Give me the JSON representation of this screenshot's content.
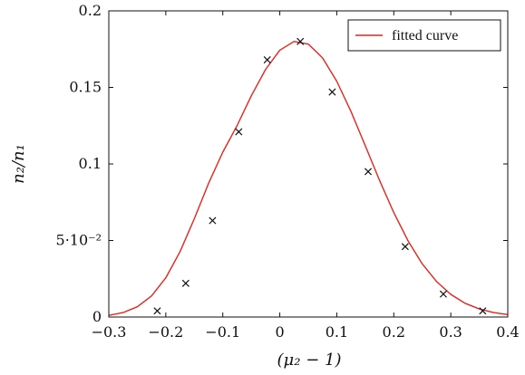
{
  "chart_data": {
    "type": "scatter",
    "xlabel": "(μ₂ − 1)",
    "ylabel": "n₂/n₁",
    "xlim": [
      -0.3,
      0.4
    ],
    "ylim": [
      0,
      0.2
    ],
    "x_ticks": [
      -0.3,
      -0.2,
      -0.1,
      0,
      0.1,
      0.2,
      0.3,
      0.4
    ],
    "x_tick_labels": [
      "−0.3",
      "−0.2",
      "−0.1",
      "0",
      "0.1",
      "0.2",
      "0.3",
      "0.4"
    ],
    "y_ticks": [
      0,
      0.05,
      0.1,
      0.15,
      0.2
    ],
    "y_tick_labels": [
      "0",
      "5·10⁻²",
      "0.1",
      "0.15",
      "0.2"
    ],
    "grid": false,
    "legend_position": "top-right",
    "legend": [
      "fitted curve"
    ],
    "series": [
      {
        "name": "fitted curve",
        "kind": "line",
        "color": "#e8241c",
        "x": [
          -0.3,
          -0.275,
          -0.25,
          -0.225,
          -0.2,
          -0.175,
          -0.15,
          -0.125,
          -0.1,
          -0.075,
          -0.05,
          -0.025,
          0,
          0.025,
          0.05,
          0.075,
          0.1,
          0.125,
          0.15,
          0.175,
          0.2,
          0.225,
          0.25,
          0.275,
          0.3,
          0.325,
          0.35,
          0.375,
          0.4
        ],
        "y": [
          0.0011,
          0.0029,
          0.0067,
          0.0138,
          0.0256,
          0.0427,
          0.0642,
          0.0873,
          0.1077,
          0.125,
          0.1445,
          0.1617,
          0.1743,
          0.18,
          0.1783,
          0.1693,
          0.154,
          0.1342,
          0.1119,
          0.0893,
          0.0682,
          0.0498,
          0.0347,
          0.0232,
          0.0148,
          0.009,
          0.0053,
          0.0029,
          0.0016
        ]
      },
      {
        "kind": "scatter",
        "marker": "x",
        "color": "#111111",
        "x": [
          -0.215,
          -0.165,
          -0.118,
          -0.072,
          -0.022,
          0.036,
          0.092,
          0.155,
          0.22,
          0.287,
          0.356
        ],
        "y": [
          0.004,
          0.022,
          0.063,
          0.121,
          0.168,
          0.18,
          0.147,
          0.095,
          0.046,
          0.015,
          0.004
        ]
      }
    ]
  }
}
